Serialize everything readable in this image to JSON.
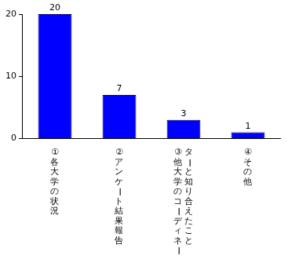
{
  "chart_data": {
    "type": "bar",
    "categories": [
      "①各大学の状況",
      "②アンケート結果報告",
      "③他大学のコーディネーターと知り合えたこと",
      "④その他"
    ],
    "values": [
      20,
      7,
      3,
      1
    ],
    "color": "#0000ff",
    "ylim": [
      0,
      20
    ],
    "yticks": [
      0,
      10,
      20
    ],
    "grid": false,
    "data_labels": true
  }
}
